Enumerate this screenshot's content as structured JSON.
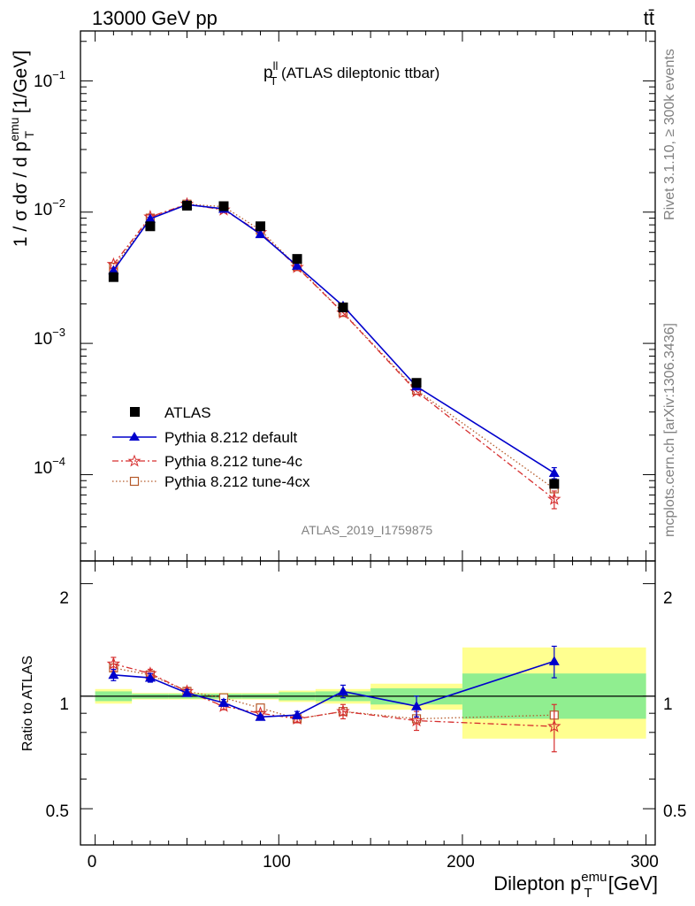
{
  "header": {
    "left": "13000 GeV pp",
    "right": "tt̄"
  },
  "plot_title": {
    "main": "p",
    "sup": "ll",
    "sub": "T",
    "rest": " (ATLAS dileptonic ttbar)"
  },
  "analysis_id": "ATLAS_2019_I1759875",
  "side_text": {
    "rivet": "Rivet 3.1.10, ≥ 300k events",
    "mcplots": "mcplots.cern.ch [arXiv:1306.3436]"
  },
  "ylabel_top": {
    "a": "1 / σ  dσ / d p",
    "sup": "emu",
    "sub": "T",
    "b": " [1/GeV]"
  },
  "ylabel_bottom": "Ratio to ATLAS",
  "xlabel": {
    "a": "Dilepton p",
    "sup": "emu",
    "sub": "T",
    "b": " [GeV]"
  },
  "ticks": {
    "top_y": [
      {
        "base": "10",
        "exp": "−1"
      },
      {
        "base": "10",
        "exp": "−2"
      },
      {
        "base": "10",
        "exp": "−3"
      },
      {
        "base": "10",
        "exp": "−4"
      }
    ],
    "bottom_y": [
      "2",
      "1",
      "0.5",
      "2",
      "1",
      "0.5"
    ],
    "x": [
      "0",
      "100",
      "200",
      "300"
    ]
  },
  "legend": [
    "ATLAS",
    "Pythia 8.212 default",
    "Pythia 8.212 tune-4c",
    "Pythia 8.212 tune-4cx"
  ],
  "colors": {
    "atlas": "#000000",
    "default": "#0000cc",
    "tune4c": "#d62f2f",
    "tune4cx": "#b55a2a",
    "band_inner": "#90ee90",
    "band_outer": "#ffff90"
  },
  "chart_data": {
    "type": "scatter",
    "x_bins": [
      [
        0,
        20
      ],
      [
        20,
        40
      ],
      [
        40,
        60
      ],
      [
        60,
        80
      ],
      [
        80,
        100
      ],
      [
        100,
        120
      ],
      [
        120,
        150
      ],
      [
        150,
        200
      ],
      [
        200,
        300
      ]
    ],
    "x": [
      10,
      30,
      50,
      70,
      90,
      110,
      135,
      175,
      250
    ],
    "xlim": [
      -8,
      305
    ],
    "main_panel": {
      "ylim": [
        2.2e-05,
        0.24
      ],
      "yscale": "log",
      "series": [
        {
          "name": "ATLAS",
          "values": [
            0.0032,
            0.0078,
            0.0112,
            0.0111,
            0.0078,
            0.0044,
            0.00188,
            0.0005,
            8.5e-05
          ]
        },
        {
          "name": "Pythia 8.212 default",
          "values": [
            0.0036,
            0.0089,
            0.0114,
            0.0106,
            0.0068,
            0.0039,
            0.00193,
            0.00047,
            0.000103
          ],
          "errors": [
            0,
            0,
            0,
            0,
            0,
            0,
            0,
            0,
            1e-05
          ]
        },
        {
          "name": "Pythia 8.212 tune-4c",
          "values": [
            0.004,
            0.0092,
            0.0115,
            0.0104,
            0.007,
            0.0038,
            0.00171,
            0.00043,
            6.5e-05
          ],
          "errors": [
            0,
            0,
            0,
            0,
            0,
            0,
            0,
            0,
            1e-05
          ]
        },
        {
          "name": "Pythia 8.212 tune-4cx",
          "values": [
            0.0038,
            0.009,
            0.0115,
            0.011,
            0.0073,
            0.00385,
            0.00172,
            0.00044,
            7.8e-05
          ]
        }
      ]
    },
    "ratio_panel": {
      "ylim": [
        0.4,
        2.3
      ],
      "yscale": "log",
      "reference": 1,
      "band_inner": [
        [
          0.97,
          1.03
        ],
        [
          0.985,
          1.015
        ],
        [
          0.985,
          1.015
        ],
        [
          0.985,
          1.015
        ],
        [
          0.985,
          1.015
        ],
        [
          0.975,
          1.025
        ],
        [
          0.97,
          1.03
        ],
        [
          0.95,
          1.05
        ],
        [
          0.87,
          1.15
        ]
      ],
      "band_outer": [
        [
          0.955,
          1.045
        ],
        [
          0.98,
          1.02
        ],
        [
          0.98,
          1.02
        ],
        [
          0.98,
          1.02
        ],
        [
          0.98,
          1.02
        ],
        [
          0.965,
          1.035
        ],
        [
          0.955,
          1.045
        ],
        [
          0.92,
          1.08
        ],
        [
          0.77,
          1.35
        ]
      ],
      "series": [
        {
          "name": "Pythia 8.212 default",
          "values": [
            1.14,
            1.12,
            1.02,
            0.96,
            0.88,
            0.89,
            1.03,
            0.94,
            1.24
          ],
          "errors": [
            0.04,
            0.03,
            0.02,
            0.02,
            0.01,
            0.02,
            0.04,
            0.06,
            0.12
          ]
        },
        {
          "name": "Pythia 8.212 tune-4c",
          "values": [
            1.22,
            1.15,
            1.03,
            0.94,
            0.9,
            0.87,
            0.91,
            0.86,
            0.83
          ],
          "errors": [
            0.05,
            0.03,
            0.02,
            0.02,
            0.01,
            0.02,
            0.04,
            0.05,
            0.12
          ]
        },
        {
          "name": "Pythia 8.212 tune-4cx",
          "values": [
            1.19,
            1.14,
            1.03,
            0.99,
            0.93,
            0.87,
            0.91,
            0.87,
            0.89
          ]
        }
      ]
    }
  }
}
